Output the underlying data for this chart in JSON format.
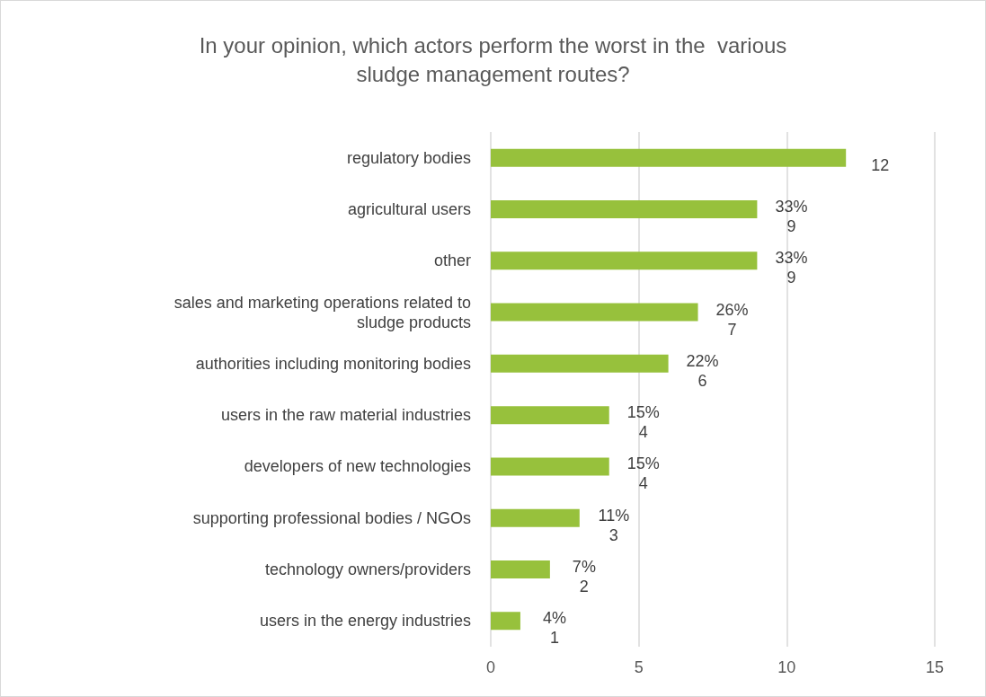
{
  "chart_data": {
    "type": "bar",
    "orientation": "horizontal",
    "title": "In your opinion, which actors perform the worst in the  various\nsludge management routes?",
    "categories": [
      "regulatory bodies",
      "agricultural users",
      "other",
      "sales and marketing operations related to\nsludge products",
      "authorities including monitoring bodies",
      "users in the raw material industries",
      "developers of new technologies",
      "supporting professional bodies / NGOs",
      "technology owners/providers",
      "users in the energy industries"
    ],
    "values": [
      12,
      9,
      9,
      7,
      6,
      4,
      4,
      3,
      2,
      1
    ],
    "value_labels": [
      "12",
      "33%\n9",
      "33%\n9",
      "26%\n7",
      "22%\n6",
      "15%\n4",
      "15%\n4",
      "11%\n3",
      "7%\n2",
      "4%\n1"
    ],
    "color": "#97c13c",
    "xlim": [
      0,
      15
    ],
    "xticks": [
      0,
      5,
      10,
      15
    ],
    "grid": "x"
  }
}
